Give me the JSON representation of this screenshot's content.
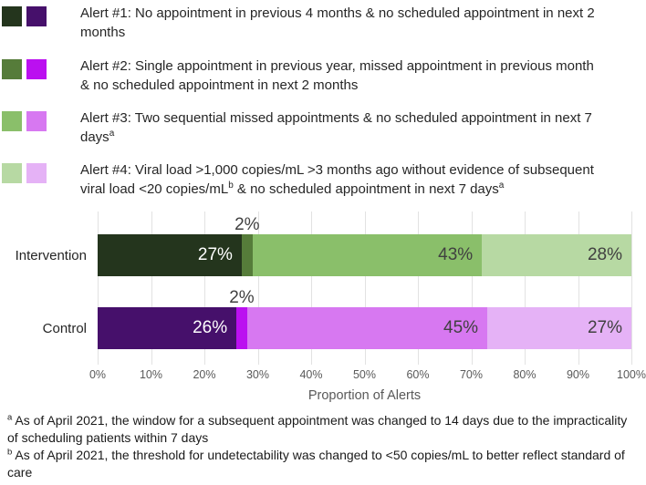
{
  "legend": {
    "items": [
      {
        "colors": [
          "#24351d",
          "#46106b"
        ],
        "parts": [
          {
            "t": "Alert #1: No appointment in previous 4 months & no scheduled appointment in next 2 months"
          }
        ]
      },
      {
        "colors": [
          "#567c3a",
          "#bb10f0"
        ],
        "parts": [
          {
            "t": "Alert #2: Single appointment in previous year, missed appointment in previous month & no scheduled appointment in next 2 months"
          }
        ]
      },
      {
        "colors": [
          "#8abf6a",
          "#d778f1"
        ],
        "parts": [
          {
            "t": "Alert #3: Two sequential missed appointments & no scheduled appointment in next 7 days"
          },
          {
            "t": "a",
            "sup": true
          }
        ]
      },
      {
        "colors": [
          "#b7d9a3",
          "#e5b2f6"
        ],
        "parts": [
          {
            "t": "Alert #4: Viral load >1,000 copies/mL >3 months ago without evidence of subsequent viral load <20 copies/mL"
          },
          {
            "t": "b",
            "sup": true
          },
          {
            "t": " & no scheduled appointment in next 7 days"
          },
          {
            "t": "a",
            "sup": true
          }
        ]
      }
    ]
  },
  "chart_data": {
    "type": "bar",
    "orientation": "horizontal-stacked",
    "categories": [
      "Intervention",
      "Control"
    ],
    "series": [
      {
        "name": "Alert #1",
        "values": [
          27,
          26
        ]
      },
      {
        "name": "Alert #2",
        "values": [
          2,
          2
        ]
      },
      {
        "name": "Alert #3",
        "values": [
          43,
          45
        ]
      },
      {
        "name": "Alert #4",
        "values": [
          28,
          27
        ]
      }
    ],
    "colors": {
      "Intervention": [
        "#24351d",
        "#567c3a",
        "#8abf6a",
        "#b7d9a3"
      ],
      "Control": [
        "#46106b",
        "#bb10f0",
        "#d778f1",
        "#e5b2f6"
      ]
    },
    "data_labels": {
      "Intervention": [
        "27%",
        "2%",
        "43%",
        "28%"
      ],
      "Control": [
        "26%",
        "2%",
        "45%",
        "27%"
      ]
    },
    "title": "",
    "xlabel": "Proportion of Alerts",
    "ylabel": "",
    "xlim": [
      0,
      100
    ],
    "x_ticks": [
      "0%",
      "10%",
      "20%",
      "30%",
      "40%",
      "50%",
      "60%",
      "70%",
      "80%",
      "90%",
      "100%"
    ],
    "grid": "vertical",
    "legend_position": "top-left"
  },
  "footnotes": [
    {
      "parts": [
        {
          "t": "a",
          "sup": true
        },
        {
          "t": " As of April 2021, the window for a subsequent appointment was changed to 14 days due to the impracticality of scheduling patients within 7 days"
        }
      ]
    },
    {
      "parts": [
        {
          "t": "b",
          "sup": true
        },
        {
          "t": " As of April 2021, the threshold for undetectability was changed to <50 copies/mL to better reflect standard of care"
        }
      ]
    }
  ]
}
